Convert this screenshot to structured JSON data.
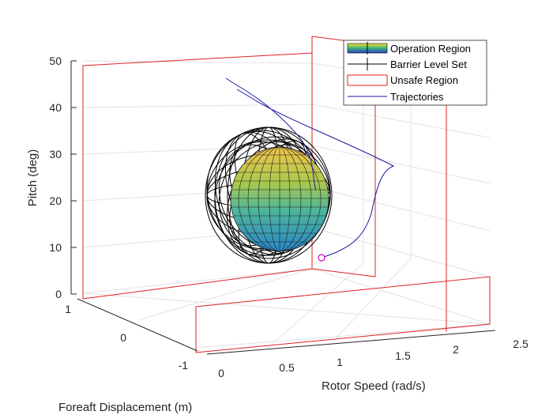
{
  "chart_data": {
    "type": "scatter",
    "view": "3d",
    "grid": true,
    "legend_placement": "top-right",
    "axes": {
      "x": {
        "label": "Rotor Speed (rad/s)",
        "ticks": [
          "0",
          "0.5",
          "1",
          "1.5",
          "2",
          "2.5"
        ],
        "range": [
          0,
          2.5
        ]
      },
      "y": {
        "label": "Foreaft Displacement (m)",
        "ticks": [
          "-1",
          "0",
          "1"
        ],
        "range": [
          -1,
          1
        ]
      },
      "z": {
        "label": "Pitch (deg)",
        "ticks": [
          "0",
          "10",
          "20",
          "30",
          "40",
          "50"
        ],
        "range": [
          0,
          50
        ]
      }
    },
    "legend": [
      {
        "label": "Operation Region",
        "kind": "surface"
      },
      {
        "label": "Barrier Level Set",
        "kind": "wireframe"
      },
      {
        "label": "Unsafe Region",
        "kind": "box-edges"
      },
      {
        "label": "Trajectories",
        "kind": "line"
      }
    ],
    "colors": {
      "operation_top": "#f2c84b",
      "operation_mid": "#8cc152",
      "operation_bottom": "#2a8fc7",
      "barrier": "#000000",
      "unsafe": "#e02020",
      "trajectory": "#1a1aa0",
      "endpoint": "#cc00cc"
    }
  }
}
